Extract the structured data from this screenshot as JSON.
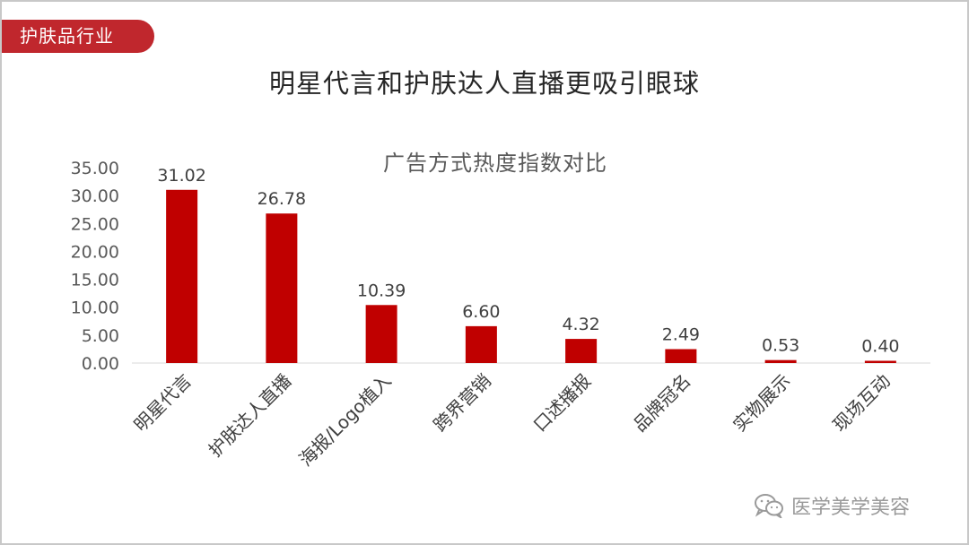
{
  "tag_label": "护肤品行业",
  "page_title": "明星代言和护肤达人直播更吸引眼球",
  "watermark_text": "医学美学美容",
  "colors": {
    "accent": "#c0272d",
    "bar": "#c00000"
  },
  "chart_data": {
    "type": "bar",
    "title": "广告方式热度指数对比",
    "categories": [
      "明星代言",
      "护肤达人直播",
      "海报/Logo植入",
      "跨界营销",
      "口述播报",
      "品牌冠名",
      "实物展示",
      "现场互动"
    ],
    "values": [
      31.02,
      26.78,
      10.39,
      6.6,
      4.32,
      2.49,
      0.53,
      0.4
    ],
    "value_labels": [
      "31.02",
      "26.78",
      "10.39",
      "6.60",
      "4.32",
      "2.49",
      "0.53",
      "0.40"
    ],
    "ylim": [
      0,
      35
    ],
    "yticks": [
      "0.00",
      "5.00",
      "10.00",
      "15.00",
      "20.00",
      "25.00",
      "30.00",
      "35.00"
    ],
    "grid": false,
    "legend": "none"
  }
}
